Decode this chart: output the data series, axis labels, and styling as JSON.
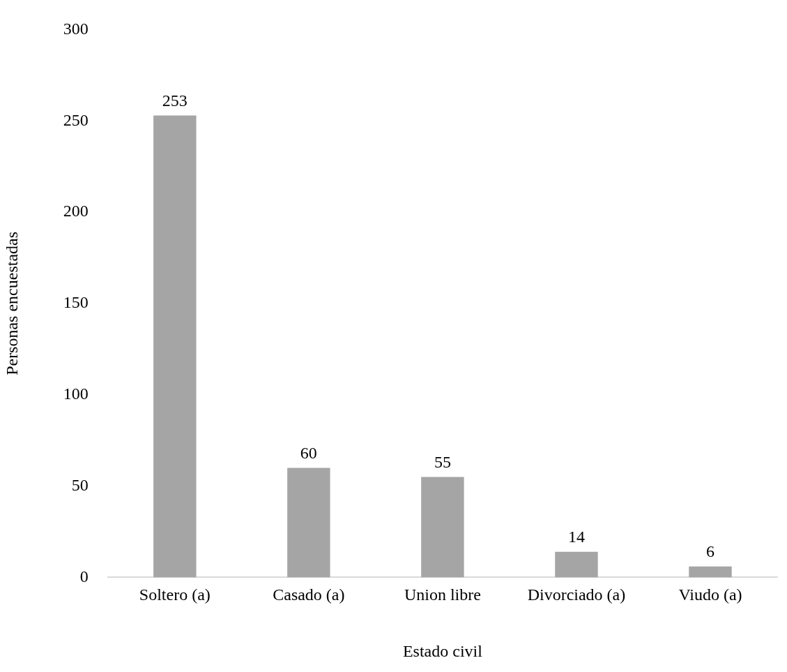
{
  "chart_data": {
    "type": "bar",
    "xlabel": "Estado civil",
    "ylabel": "Personas encuestadas",
    "categories": [
      "Soltero (a)",
      "Casado (a)",
      "Union libre",
      "Divorciado (a)",
      "Viudo (a)"
    ],
    "values": [
      253,
      60,
      55,
      14,
      6
    ],
    "color": "#a5a5a5",
    "ylim": [
      0,
      300
    ],
    "yticks": [
      0,
      50,
      100,
      150,
      200,
      250,
      300
    ],
    "grid": false,
    "legend": false,
    "data_labels": true
  }
}
